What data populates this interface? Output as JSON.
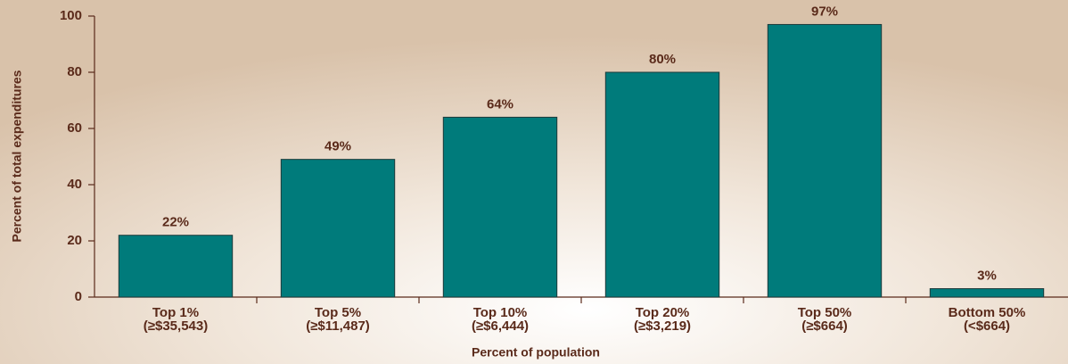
{
  "chart_data": {
    "type": "bar",
    "x_label": "Percent of population",
    "y_label": "Percent of total expenditures",
    "categories": [
      [
        "Top 1%",
        "(≥$35,543)"
      ],
      [
        "Top 5%",
        "(≥$11,487)"
      ],
      [
        "Top 10%",
        "(≥$6,444)"
      ],
      [
        "Top 20%",
        "(≥$3,219)"
      ],
      [
        "Top 50%",
        "(≥$664)"
      ],
      [
        "Bottom 50%",
        "(<$664)"
      ]
    ],
    "values": [
      22,
      49,
      64,
      80,
      97,
      3
    ],
    "value_labels": [
      "22%",
      "49%",
      "64%",
      "80%",
      "97%",
      "3%"
    ],
    "color": "#007b7b",
    "ylim": [
      0,
      100
    ],
    "yticks": [
      0,
      20,
      40,
      60,
      80,
      100
    ]
  }
}
